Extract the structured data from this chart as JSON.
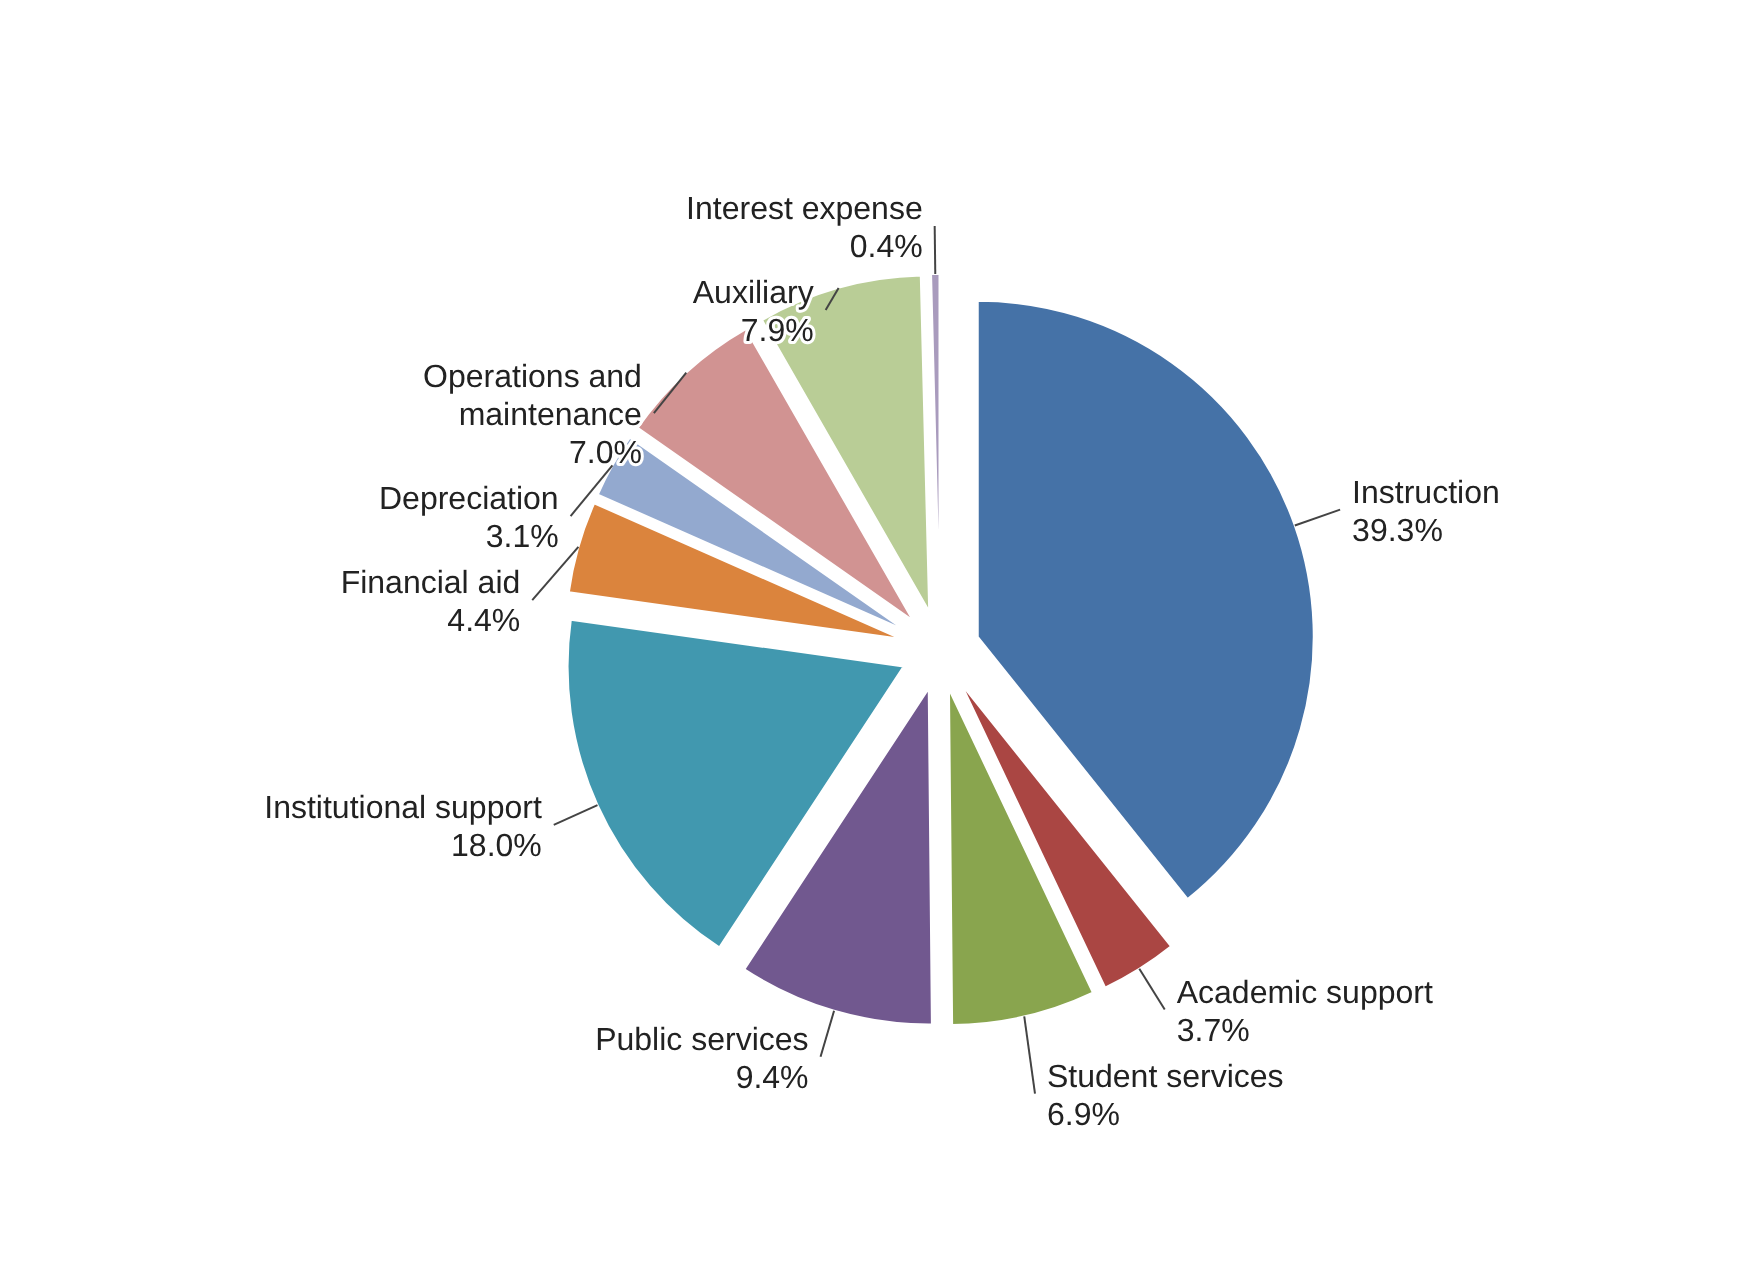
{
  "chart_data": {
    "type": "pie",
    "categories": [
      "Instruction",
      "Academic support",
      "Student services",
      "Public services",
      "Institutional support",
      "Financial aid",
      "Depreciation",
      "Operations and maintenance",
      "Auxiliary",
      "Interest expense"
    ],
    "values": [
      39.3,
      3.7,
      6.9,
      9.4,
      18.0,
      4.4,
      3.1,
      7.0,
      7.9,
      0.4
    ],
    "value_labels": [
      "39.3%",
      "3.7%",
      "6.9%",
      "9.4%",
      "18.0%",
      "4.4%",
      "3.1%",
      "7.0%",
      "7.9%",
      "0.4%"
    ],
    "colors": [
      "#4572a7",
      "#aa4643",
      "#89a54e",
      "#71588f",
      "#4198af",
      "#db843d",
      "#93a9cf",
      "#d19392",
      "#b9cd96",
      "#a99bbd"
    ]
  }
}
